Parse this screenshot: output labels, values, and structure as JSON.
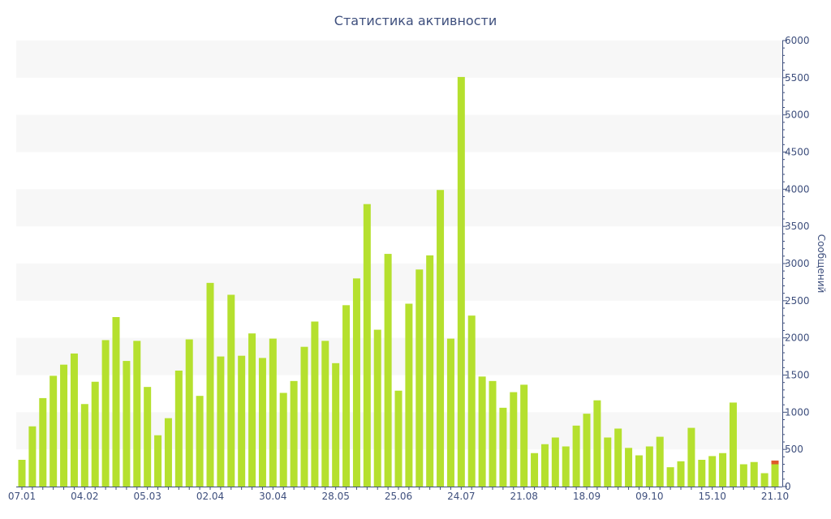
{
  "chart_data": {
    "type": "bar",
    "title": "Статистика активности",
    "ylabel": "Сообщений",
    "xlabel": "",
    "ylim": [
      0,
      6000
    ],
    "y_ticks": [
      0,
      500,
      1000,
      1500,
      2000,
      2500,
      3000,
      3500,
      4000,
      4500,
      5000,
      5500,
      6000
    ],
    "y_axis_side": "right",
    "grid": "alternating horizontal bands",
    "x_tick_labels": [
      {
        "index": 0,
        "label": "07.01"
      },
      {
        "index": 6,
        "label": "04.02"
      },
      {
        "index": 12,
        "label": "05.03"
      },
      {
        "index": 18,
        "label": "02.04"
      },
      {
        "index": 24,
        "label": "30.04"
      },
      {
        "index": 30,
        "label": "28.05"
      },
      {
        "index": 36,
        "label": "25.06"
      },
      {
        "index": 42,
        "label": "24.07"
      },
      {
        "index": 48,
        "label": "21.08"
      },
      {
        "index": 54,
        "label": "18.09"
      },
      {
        "index": 60,
        "label": "09.10"
      },
      {
        "index": 66,
        "label": "15.10"
      },
      {
        "index": 72,
        "label": "21.10"
      }
    ],
    "values": [
      360,
      810,
      1190,
      1490,
      1640,
      1790,
      1110,
      1410,
      1970,
      2280,
      1690,
      1960,
      1340,
      690,
      920,
      1560,
      1980,
      1220,
      2740,
      1750,
      2580,
      1760,
      2060,
      1730,
      1990,
      1260,
      1420,
      1880,
      2220,
      1960,
      1660,
      2440,
      2800,
      3800,
      2110,
      3130,
      1290,
      2460,
      2920,
      3110,
      3990,
      1990,
      5510,
      2300,
      1480,
      1420,
      1060,
      1270,
      1370,
      450,
      570,
      660,
      540,
      820,
      980,
      1160,
      660,
      780,
      520,
      420,
      540,
      670,
      260,
      340,
      790,
      360,
      410,
      450,
      1130,
      300,
      330,
      180,
      300
    ],
    "colors": {
      "bar": "#b5e02e",
      "band": "#f7f7f7",
      "axis": "#3e4f7d",
      "accent_last": "#e05a2b"
    },
    "last_bar_cap_value": 50
  }
}
